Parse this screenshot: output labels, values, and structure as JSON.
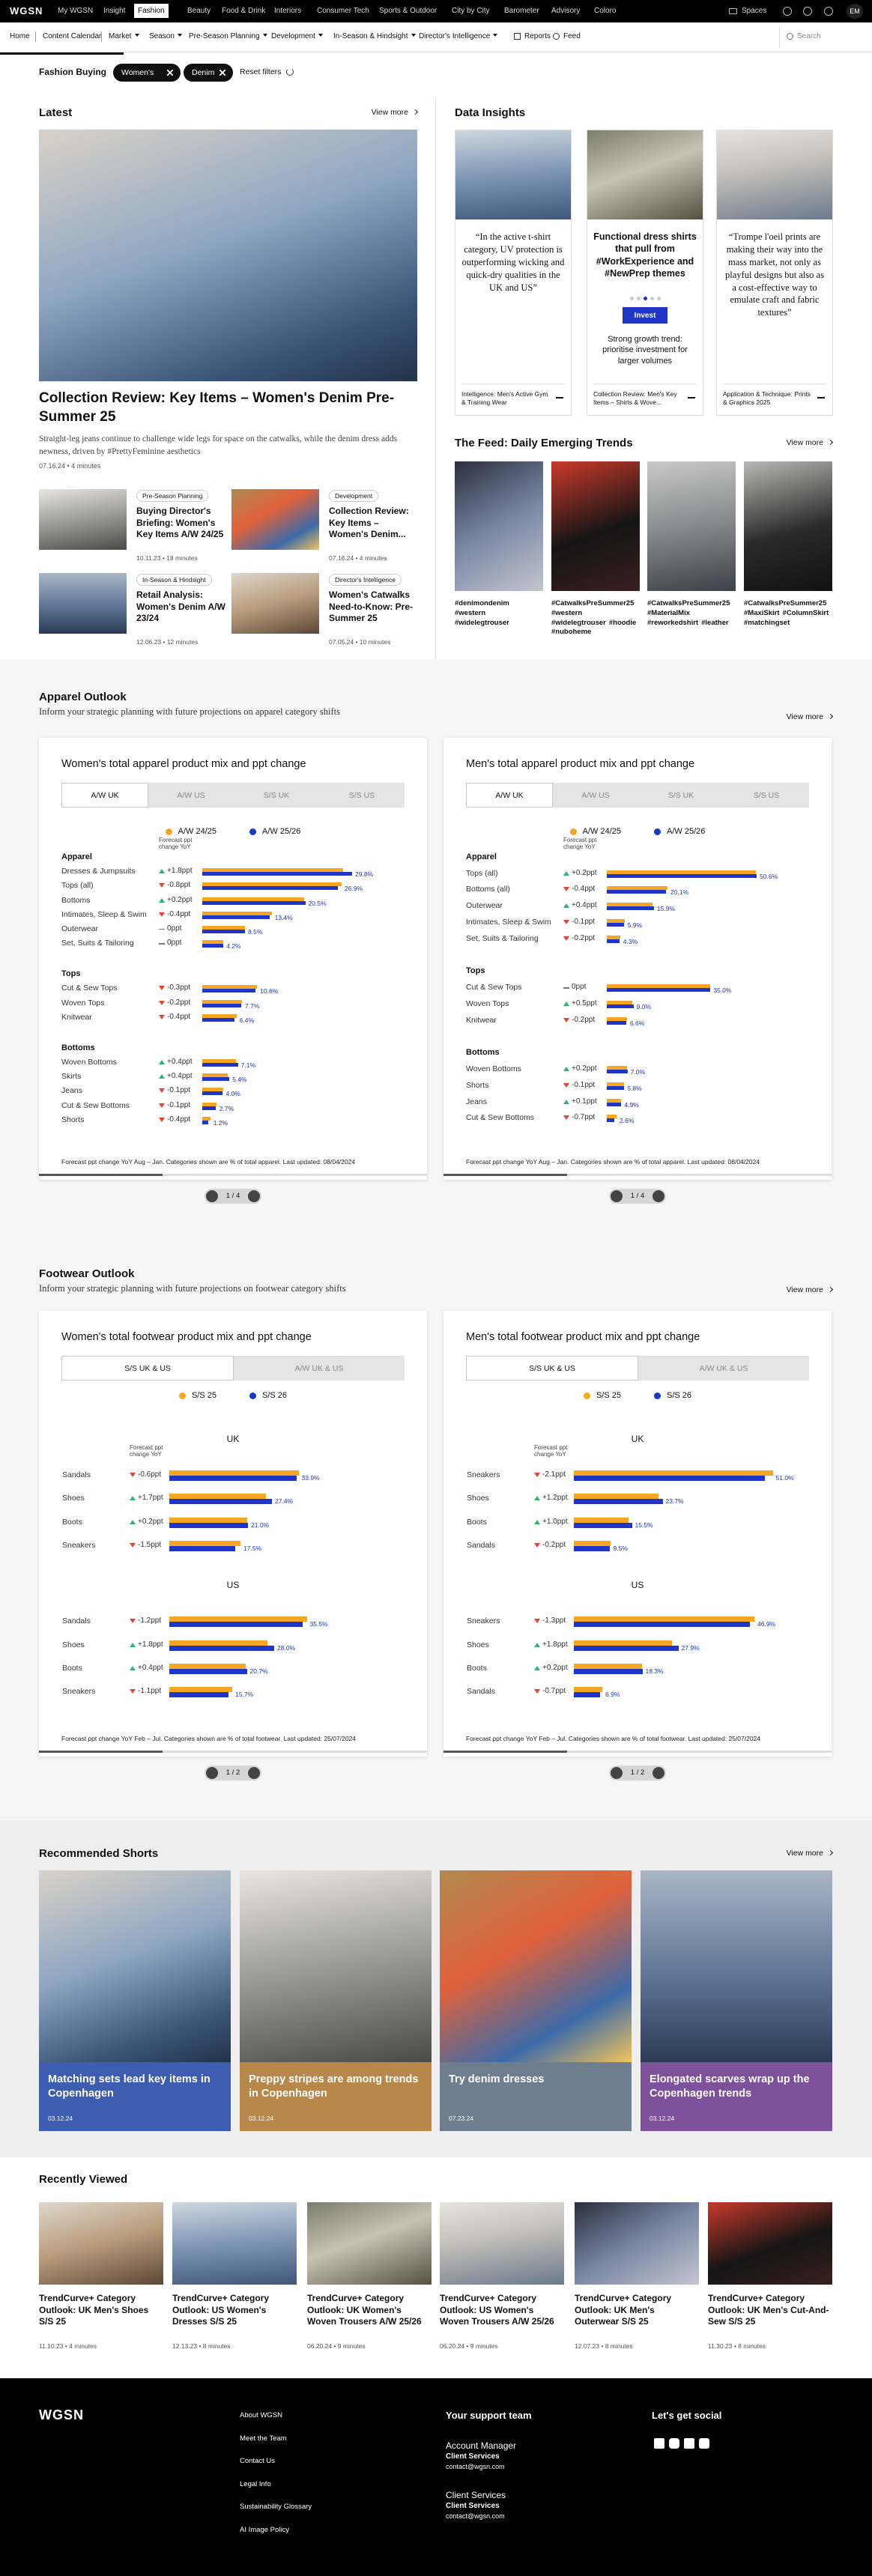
{
  "top_nav": {
    "logo": "WGSN",
    "items": [
      "My WGSN",
      "Insight",
      "Fashion",
      "Beauty",
      "Food & Drink",
      "Interiors",
      "Consumer Tech",
      "Sports & Outdoor",
      "City by City",
      "Barometer",
      "Advisory",
      "Coloro"
    ],
    "active": 2,
    "spaces": "Spaces",
    "user": "EM"
  },
  "sub_nav": {
    "items": [
      {
        "label": "Home"
      },
      {
        "label": "Content Calendar"
      },
      {
        "label": "Market",
        "dropdown": true
      },
      {
        "label": "Season",
        "dropdown": true
      },
      {
        "label": "Pre-Season Planning",
        "dropdown": true
      },
      {
        "label": "Development",
        "dropdown": true
      },
      {
        "label": "In-Season & Hindsight",
        "dropdown": true
      },
      {
        "label": "Director's Intelligence",
        "dropdown": true
      },
      {
        "label": "Reports"
      },
      {
        "label": "Feed"
      }
    ],
    "search": "Search"
  },
  "filters": {
    "label": "Fashion Buying",
    "pills": [
      "Women's",
      "Denim"
    ],
    "reset": "Reset filters"
  },
  "latest": {
    "title": "Latest",
    "view_more": "View more",
    "hero": {
      "title": "Collection Review: Key Items – Women's Denim Pre-Summer 25",
      "description": "Straight-leg jeans continue to challenge wide legs for space on the catwalks, while the denim dress adds newness, driven by #PrettyFeminine aesthetics",
      "meta": "07.16.24 • 4 minutes"
    },
    "cards": [
      {
        "tag": "Pre-Season Planning",
        "title": "Buying Director's Briefing: Women's Key Items A/W 24/25",
        "meta": "10.11.23 • 18 minutes"
      },
      {
        "tag": "Development",
        "title": "Collection Review: Key Items – Women's Denim...",
        "meta": "07.16.24 • 4 minutes"
      },
      {
        "tag": "In-Season & Hindsight",
        "title": "Retail Analysis: Women's Denim A/W 23/24",
        "meta": "12.06.23 • 12 minutes"
      },
      {
        "tag": "Director's Intelligence",
        "title": "Women's Catwalks Need-to-Know: Pre-Summer 25",
        "meta": "07.05.24 • 10 minutes"
      }
    ]
  },
  "data_insights": {
    "title": "Data Insights",
    "cards": [
      {
        "quote": "“In the active t-shirt category, UV protection is outperforming wicking and quick-dry qualities in the UK and US”",
        "footer": "Intelligence: Men's Active Gym & Training Wear"
      },
      {
        "headline": "Functional dress shirts that pull from #WorkExperience and #NewPrep themes",
        "button": "Invest",
        "note": "Strong growth trend: prioritise investment for larger volumes",
        "footer": "Collection Review: Men's Key Items – Shirts & Wove..."
      },
      {
        "quote": "“Trompe l'oeil prints are making their way into the mass market, not only as playful designs but also as a cost-effective way to emulate craft and fabric textures”",
        "footer": "Application & Technique: Prints & Graphics 2025"
      }
    ]
  },
  "feed": {
    "title": "The Feed: Daily Emerging Trends",
    "view_more": "View more",
    "items": [
      [
        "#denimondenim",
        "#western",
        "#widelegtrouser"
      ],
      [
        "#CatwalksPreSummer25",
        "#western",
        "#widelegtrouser",
        "#hoodie",
        "#nuboheme"
      ],
      [
        "#CatwalksPreSummer25",
        "#MaterialMix",
        "#reworkedshirt",
        "#leather"
      ],
      [
        "#CatwalksPreSummer25",
        "#MaxiSkirt",
        "#ColumnSkirt",
        "#matchingset"
      ]
    ]
  },
  "apparel_outlook": {
    "title": "Apparel Outlook",
    "subtitle": "Inform your strategic planning with future projections on apparel category shifts",
    "view_more": "View more",
    "charts": [
      {
        "title": "Women's total apparel product mix and ppt change",
        "tabs": [
          "A/W UK",
          "A/W US",
          "S/S UK",
          "S/S US"
        ],
        "active_tab": 0,
        "legend": [
          {
            "name": "A/W 24/25",
            "color": "#f5a623"
          },
          {
            "name": "A/W 25/26",
            "color": "#1e35c8"
          }
        ],
        "change_header": "Forecast ppt change YoY",
        "groups": [
          {
            "name": "Apparel",
            "rows": [
              {
                "label": "Dresses & Jumpsuits",
                "change": "+1.8ppt",
                "previous": 28.0,
                "value": 29.8,
                "value_label": "29.8%"
              },
              {
                "label": "Tops (all)",
                "change": "-0.8ppt",
                "previous": 27.7,
                "value": 26.9,
                "value_label": "26.9%"
              },
              {
                "label": "Bottoms",
                "change": "+0.2ppt",
                "previous": 20.3,
                "value": 20.5,
                "value_label": "20.5%"
              },
              {
                "label": "Intimates, Sleep & Swim",
                "change": "-0.4ppt",
                "previous": 13.8,
                "value": 13.4,
                "value_label": "13.4%"
              },
              {
                "label": "Outerwear",
                "change": "0ppt",
                "previous": 8.5,
                "value": 8.5,
                "value_label": "8.5%"
              },
              {
                "label": "Set, Suits & Tailoring",
                "change": "0ppt",
                "previous": 4.2,
                "value": 4.2,
                "value_label": "4.2%"
              }
            ]
          },
          {
            "name": "Tops",
            "rows": [
              {
                "label": "Cut & Sew Tops",
                "change": "-0.3ppt",
                "previous": 10.9,
                "value": 10.6,
                "value_label": "10.6%"
              },
              {
                "label": "Woven Tops",
                "change": "-0.2ppt",
                "previous": 7.9,
                "value": 7.7,
                "value_label": "7.7%"
              },
              {
                "label": "Knitwear",
                "change": "-0.4ppt",
                "previous": 6.8,
                "value": 6.4,
                "value_label": "6.4%"
              }
            ]
          },
          {
            "name": "Bottoms",
            "rows": [
              {
                "label": "Woven Bottoms",
                "change": "+0.4ppt",
                "previous": 6.7,
                "value": 7.1,
                "value_label": "7.1%"
              },
              {
                "label": "Skirts",
                "change": "+0.4ppt",
                "previous": 5.0,
                "value": 5.4,
                "value_label": "5.4%"
              },
              {
                "label": "Jeans",
                "change": "-0.1ppt",
                "previous": 4.1,
                "value": 4.0,
                "value_label": "4.0%"
              },
              {
                "label": "Cut & Sew Bottoms",
                "change": "-0.1ppt",
                "previous": 2.8,
                "value": 2.7,
                "value_label": "2.7%"
              },
              {
                "label": "Shorts",
                "change": "-0.4ppt",
                "previous": 1.6,
                "value": 1.2,
                "value_label": "1.2%"
              }
            ]
          }
        ],
        "footnote": "Forecast ppt change YoY Aug – Jan. Categories shown are % of total apparel. Last updated: 08/04/2024",
        "pagination": "1 / 4"
      },
      {
        "title": "Men's total apparel product mix and ppt change",
        "tabs": [
          "A/W UK",
          "A/W US",
          "S/S UK",
          "S/S US"
        ],
        "active_tab": 0,
        "legend": [
          {
            "name": "A/W 24/25",
            "color": "#f5a623"
          },
          {
            "name": "A/W 25/26",
            "color": "#1e35c8"
          }
        ],
        "change_header": "Forecast ppt change YoY",
        "groups": [
          {
            "name": "Apparel",
            "rows": [
              {
                "label": "Tops (all)",
                "change": "+0.2ppt",
                "previous": 50.4,
                "value": 50.6,
                "value_label": "50.6%"
              },
              {
                "label": "Bottoms (all)",
                "change": "-0.4ppt",
                "previous": 20.5,
                "value": 20.1,
                "value_label": "20.1%"
              },
              {
                "label": "Outerwear",
                "change": "+0.4ppt",
                "previous": 15.5,
                "value": 15.9,
                "value_label": "15.9%"
              },
              {
                "label": "Intimates, Sleep & Swim",
                "change": "-0.1ppt",
                "previous": 6.0,
                "value": 5.9,
                "value_label": "5.9%"
              },
              {
                "label": "Set, Suits & Tailoring",
                "change": "-0.2ppt",
                "previous": 4.5,
                "value": 4.3,
                "value_label": "4.3%"
              }
            ]
          },
          {
            "name": "Tops",
            "rows": [
              {
                "label": "Cut & Sew Tops",
                "change": "0ppt",
                "previous": 35.0,
                "value": 35.0,
                "value_label": "35.0%"
              },
              {
                "label": "Woven Tops",
                "change": "+0.5ppt",
                "previous": 8.5,
                "value": 9.0,
                "value_label": "9.0%"
              },
              {
                "label": "Knitwear",
                "change": "-0.2ppt",
                "previous": 6.8,
                "value": 6.6,
                "value_label": "6.6%"
              }
            ]
          },
          {
            "name": "Bottoms",
            "rows": [
              {
                "label": "Woven Bottoms",
                "change": "+0.2ppt",
                "previous": 6.8,
                "value": 7.0,
                "value_label": "7.0%"
              },
              {
                "label": "Shorts",
                "change": "-0.1ppt",
                "previous": 5.9,
                "value": 5.8,
                "value_label": "5.8%"
              },
              {
                "label": "Jeans",
                "change": "+0.1ppt",
                "previous": 4.8,
                "value": 4.9,
                "value_label": "4.9%"
              },
              {
                "label": "Cut & Sew Bottoms",
                "change": "-0.7ppt",
                "previous": 3.3,
                "value": 2.6,
                "value_label": "2.6%"
              }
            ]
          }
        ],
        "footnote": "Forecast ppt change YoY Aug – Jan. Categories shown are % of total apparel. Last updated: 08/04/2024",
        "pagination": "1 / 4"
      }
    ]
  },
  "footwear_outlook": {
    "title": "Footwear Outlook",
    "subtitle": "Inform your strategic planning with future projections on footwear category shifts",
    "view_more": "View more",
    "charts": [
      {
        "title": "Women's total footwear product mix and ppt change",
        "tabs": [
          "S/S UK & US",
          "A/W UK & US"
        ],
        "active_tab": 0,
        "legend": [
          {
            "name": "S/S 25",
            "color": "#f5a623"
          },
          {
            "name": "S/S 26",
            "color": "#1e35c8"
          }
        ],
        "change_header": "Forecast ppt change YoY",
        "groups": [
          {
            "name": "UK",
            "rows": [
              {
                "label": "Sandals",
                "change": "-0.6ppt",
                "previous": 34.5,
                "value": 33.9,
                "value_label": "33.9%"
              },
              {
                "label": "Shoes",
                "change": "+1.7ppt",
                "previous": 25.7,
                "value": 27.4,
                "value_label": "27.4%"
              },
              {
                "label": "Boots",
                "change": "+0.2ppt",
                "previous": 20.8,
                "value": 21.0,
                "value_label": "21.0%"
              },
              {
                "label": "Sneakers",
                "change": "-1.5ppt",
                "previous": 19.0,
                "value": 17.5,
                "value_label": "17.5%"
              }
            ]
          },
          {
            "name": "US",
            "rows": [
              {
                "label": "Sandals",
                "change": "-1.2ppt",
                "previous": 36.7,
                "value": 35.5,
                "value_label": "35.5%"
              },
              {
                "label": "Shoes",
                "change": "+1.8ppt",
                "previous": 26.2,
                "value": 28.0,
                "value_label": "28.0%"
              },
              {
                "label": "Boots",
                "change": "+0.4ppt",
                "previous": 20.3,
                "value": 20.7,
                "value_label": "20.7%"
              },
              {
                "label": "Sneakers",
                "change": "-1.1ppt",
                "previous": 16.8,
                "value": 15.7,
                "value_label": "15.7%"
              }
            ]
          }
        ],
        "footnote": "Forecast ppt change YoY Feb – Jul. Categories shown are % of total footwear. Last updated: 25/07/2024",
        "pagination": "1 / 2"
      },
      {
        "title": "Men's total footwear product mix and ppt change",
        "tabs": [
          "S/S UK & US",
          "A/W UK & US"
        ],
        "active_tab": 0,
        "legend": [
          {
            "name": "S/S 25",
            "color": "#f5a623"
          },
          {
            "name": "S/S 26",
            "color": "#1e35c8"
          }
        ],
        "change_header": "Forecast ppt change YoY",
        "groups": [
          {
            "name": "UK",
            "rows": [
              {
                "label": "Sneakers",
                "change": "-2.1ppt",
                "previous": 53.1,
                "value": 51.0,
                "value_label": "51.0%"
              },
              {
                "label": "Shoes",
                "change": "+1.2ppt",
                "previous": 22.5,
                "value": 23.7,
                "value_label": "23.7%"
              },
              {
                "label": "Boots",
                "change": "+1.0ppt",
                "previous": 14.5,
                "value": 15.5,
                "value_label": "15.5%"
              },
              {
                "label": "Sandals",
                "change": "-0.2ppt",
                "previous": 9.7,
                "value": 9.5,
                "value_label": "9.5%"
              }
            ]
          },
          {
            "name": "US",
            "rows": [
              {
                "label": "Sneakers",
                "change": "-1.3ppt",
                "previous": 48.2,
                "value": 46.9,
                "value_label": "46.9%"
              },
              {
                "label": "Shoes",
                "change": "+1.8ppt",
                "previous": 26.1,
                "value": 27.9,
                "value_label": "27.9%"
              },
              {
                "label": "Boots",
                "change": "+0.2ppt",
                "previous": 18.1,
                "value": 18.3,
                "value_label": "18.3%"
              },
              {
                "label": "Sandals",
                "change": "-0.7ppt",
                "previous": 7.6,
                "value": 6.9,
                "value_label": "6.9%"
              }
            ]
          }
        ],
        "footnote": "Forecast ppt change YoY Feb – Jul. Categories shown are % of total footwear. Last updated: 25/07/2024",
        "pagination": "1 / 2"
      }
    ]
  },
  "recommended_shorts": {
    "title": "Recommended Shorts",
    "view_more": "View more",
    "items": [
      {
        "title": "Matching sets lead key items in Copenhagen",
        "date": "03.12.24",
        "color": "#3d5db0"
      },
      {
        "title": "Preppy stripes are among trends in Copenhagen",
        "date": "03.12.24",
        "color": "#b7884a"
      },
      {
        "title": "Try denim dresses",
        "date": "07.23.24",
        "color": "#6e7e8f"
      },
      {
        "title": "Elongated scarves wrap up the Copenhagen trends",
        "date": "03.12.24",
        "color": "#7d519c"
      }
    ]
  },
  "recently_viewed": {
    "title": "Recently Viewed",
    "items": [
      {
        "title": "TrendCurve+ Category Outlook: UK Men's Shoes S/S 25",
        "meta": "11.10.23 • 4 minutes"
      },
      {
        "title": "TrendCurve+ Category Outlook: US Women's Dresses S/S 25",
        "meta": "12.13.23 • 8 minutes"
      },
      {
        "title": "TrendCurve+ Category Outlook: UK Women's Woven Trousers A/W 25/26",
        "meta": "06.20.24 • 9 minutes"
      },
      {
        "title": "TrendCurve+ Category Outlook: US Women's Woven Trousers A/W 25/26",
        "meta": "06.20.24 • 9 minutes"
      },
      {
        "title": "TrendCurve+ Category Outlook: UK Men's Outerwear S/S 25",
        "meta": "12.07.23 • 8 minutes"
      },
      {
        "title": "TrendCurve+ Category Outlook: UK Men's Cut-And-Sew S/S 25",
        "meta": "11.30.23 • 8 minutes"
      }
    ]
  },
  "footer": {
    "logo": "WGSN",
    "links": [
      "About WGSN",
      "Meet the Team",
      "Contact Us",
      "Legal Info",
      "Sustainability Glossary",
      "AI Image Policy"
    ],
    "support": {
      "title": "Your support team",
      "contacts": [
        {
          "role": "Account Manager",
          "name": "Client Services",
          "email": "contact@wgsn.com"
        },
        {
          "role": "Client Services",
          "name": "Client Services",
          "email": "contact@wgsn.com"
        }
      ]
    },
    "social": {
      "title": "Let's get social"
    }
  }
}
